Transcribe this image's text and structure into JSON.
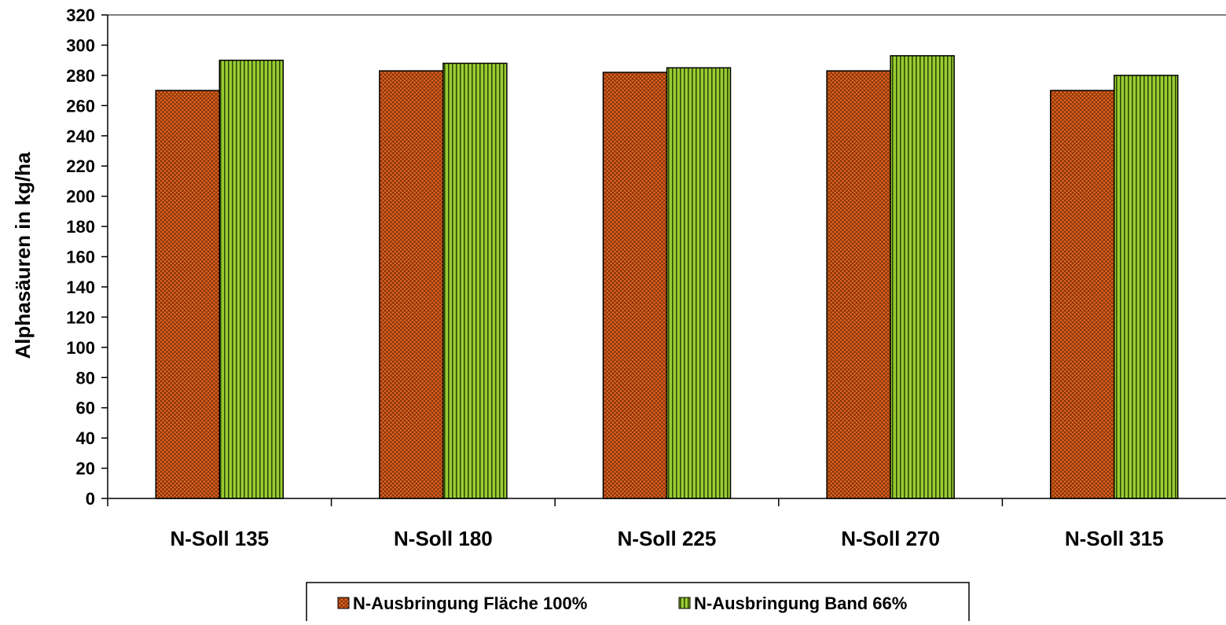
{
  "chart_data": {
    "type": "bar",
    "title": "",
    "xlabel": "",
    "ylabel": "Alphasäuren in kg/ha",
    "ylim": [
      0,
      320
    ],
    "yticks": [
      0,
      20,
      40,
      60,
      80,
      100,
      120,
      140,
      160,
      180,
      200,
      220,
      240,
      260,
      280,
      300,
      320
    ],
    "grid": false,
    "legend_position": "bottom",
    "categories": [
      "N-Soll 135",
      "N-Soll 180",
      "N-Soll 225",
      "N-Soll 270",
      "N-Soll 315"
    ],
    "series": [
      {
        "name": "N-Ausbringung Fläche 100%",
        "values": [
          270,
          283,
          282,
          283,
          270
        ],
        "color": "#E8641E",
        "pattern": "crosshatch"
      },
      {
        "name": "N-Ausbringung Band 66%",
        "values": [
          290,
          288,
          285,
          293,
          280
        ],
        "color": "#9ACD32",
        "pattern": "vertical-stripes"
      }
    ]
  }
}
